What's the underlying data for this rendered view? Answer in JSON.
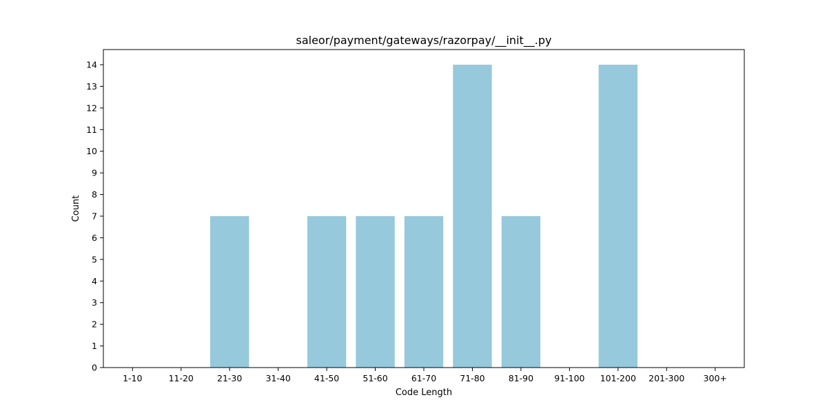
{
  "chart_data": {
    "type": "bar",
    "title": "saleor/payment/gateways/razorpay/__init__.py",
    "xlabel": "Code Length",
    "ylabel": "Count",
    "categories": [
      "1-10",
      "11-20",
      "21-30",
      "31-40",
      "41-50",
      "51-60",
      "61-70",
      "71-80",
      "81-90",
      "91-100",
      "101-200",
      "201-300",
      "300+"
    ],
    "values": [
      0,
      0,
      7,
      0,
      7,
      7,
      7,
      14,
      7,
      0,
      14,
      0,
      0
    ],
    "ylim": [
      0,
      14.7
    ],
    "yticks": [
      0,
      1,
      2,
      3,
      4,
      5,
      6,
      7,
      8,
      9,
      10,
      11,
      12,
      13,
      14
    ],
    "bar_color": "#96c9dc",
    "grid": false,
    "legend": "none"
  }
}
